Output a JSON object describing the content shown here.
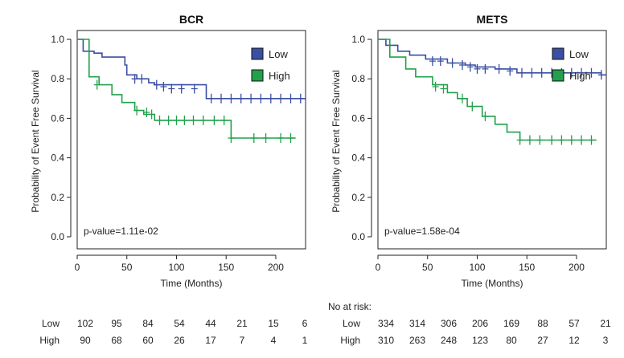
{
  "risk_label": "No at risk:",
  "colors": {
    "low": "#3a4ea3",
    "high": "#22a04b",
    "axis": "#222222"
  },
  "chart_data": [
    {
      "type": "line",
      "title": "BCR",
      "xlabel": "Time (Months)",
      "ylabel": "Probability of Event Free Survival",
      "xlim": [
        0,
        230
      ],
      "ylim": [
        0,
        1
      ],
      "xticks": [
        "0",
        "50",
        "100",
        "150",
        "200"
      ],
      "yticks": [
        "0.0",
        "0.2",
        "0.4",
        "0.6",
        "0.8",
        "1.0"
      ],
      "grid": false,
      "legend": "top-right",
      "pvalue": "p-value=1.11e-02",
      "series": [
        {
          "name": "Low",
          "color": "#3a4ea3",
          "steps": [
            [
              0,
              1.0
            ],
            [
              6,
              1.0
            ],
            [
              6,
              0.94
            ],
            [
              17,
              0.94
            ],
            [
              17,
              0.93
            ],
            [
              25,
              0.93
            ],
            [
              25,
              0.91
            ],
            [
              48,
              0.91
            ],
            [
              48,
              0.87
            ],
            [
              50,
              0.87
            ],
            [
              50,
              0.82
            ],
            [
              60,
              0.82
            ],
            [
              60,
              0.8
            ],
            [
              72,
              0.8
            ],
            [
              72,
              0.78
            ],
            [
              78,
              0.78
            ],
            [
              78,
              0.77
            ],
            [
              130,
              0.77
            ],
            [
              130,
              0.7
            ],
            [
              230,
              0.7
            ]
          ],
          "censored": [
            [
              58,
              0.8
            ],
            [
              65,
              0.8
            ],
            [
              80,
              0.77
            ],
            [
              87,
              0.76
            ],
            [
              95,
              0.75
            ],
            [
              105,
              0.75
            ],
            [
              118,
              0.75
            ],
            [
              135,
              0.7
            ],
            [
              145,
              0.7
            ],
            [
              155,
              0.7
            ],
            [
              165,
              0.7
            ],
            [
              175,
              0.7
            ],
            [
              185,
              0.7
            ],
            [
              195,
              0.7
            ],
            [
              205,
              0.7
            ],
            [
              215,
              0.7
            ],
            [
              225,
              0.7
            ]
          ]
        },
        {
          "name": "High",
          "color": "#22a04b",
          "steps": [
            [
              0,
              1.0
            ],
            [
              12,
              1.0
            ],
            [
              12,
              0.81
            ],
            [
              22,
              0.81
            ],
            [
              22,
              0.77
            ],
            [
              35,
              0.77
            ],
            [
              35,
              0.72
            ],
            [
              45,
              0.72
            ],
            [
              45,
              0.68
            ],
            [
              58,
              0.68
            ],
            [
              58,
              0.64
            ],
            [
              67,
              0.64
            ],
            [
              67,
              0.62
            ],
            [
              78,
              0.62
            ],
            [
              78,
              0.59
            ],
            [
              155,
              0.59
            ],
            [
              155,
              0.5
            ],
            [
              220,
              0.5
            ]
          ],
          "censored": [
            [
              20,
              0.77
            ],
            [
              60,
              0.64
            ],
            [
              70,
              0.63
            ],
            [
              75,
              0.62
            ],
            [
              83,
              0.59
            ],
            [
              92,
              0.59
            ],
            [
              100,
              0.59
            ],
            [
              108,
              0.59
            ],
            [
              117,
              0.59
            ],
            [
              127,
              0.59
            ],
            [
              138,
              0.59
            ],
            [
              148,
              0.59
            ],
            [
              155,
              0.5
            ],
            [
              178,
              0.5
            ],
            [
              190,
              0.5
            ],
            [
              205,
              0.5
            ],
            [
              215,
              0.5
            ]
          ]
        }
      ],
      "at_risk": {
        "x": [
          0,
          25,
          50,
          75,
          100,
          125,
          150,
          175
        ],
        "rows": [
          {
            "label": "Low",
            "values": [
              "102",
              "95",
              "84",
              "54",
              "44",
              "21",
              "15",
              "6"
            ]
          },
          {
            "label": "High",
            "values": [
              "90",
              "68",
              "60",
              "26",
              "17",
              "7",
              "4",
              "1"
            ]
          }
        ]
      }
    },
    {
      "type": "line",
      "title": "METS",
      "xlabel": "Time (Months)",
      "ylabel": "Probability of Event Free Survival",
      "xlim": [
        0,
        230
      ],
      "ylim": [
        0,
        1
      ],
      "xticks": [
        "0",
        "50",
        "100",
        "150",
        "200"
      ],
      "yticks": [
        "0.0",
        "0.2",
        "0.4",
        "0.6",
        "0.8",
        "1.0"
      ],
      "grid": false,
      "legend": "top-right",
      "pvalue": "p-value=1.58e-04",
      "series": [
        {
          "name": "Low",
          "color": "#3a4ea3",
          "steps": [
            [
              0,
              1.0
            ],
            [
              8,
              1.0
            ],
            [
              8,
              0.97
            ],
            [
              20,
              0.97
            ],
            [
              20,
              0.94
            ],
            [
              32,
              0.94
            ],
            [
              32,
              0.92
            ],
            [
              48,
              0.92
            ],
            [
              48,
              0.9
            ],
            [
              70,
              0.9
            ],
            [
              70,
              0.88
            ],
            [
              88,
              0.88
            ],
            [
              88,
              0.87
            ],
            [
              98,
              0.87
            ],
            [
              98,
              0.86
            ],
            [
              118,
              0.86
            ],
            [
              118,
              0.85
            ],
            [
              140,
              0.85
            ],
            [
              140,
              0.83
            ],
            [
              225,
              0.83
            ],
            [
              225,
              0.82
            ],
            [
              230,
              0.82
            ]
          ],
          "censored": [
            [
              55,
              0.89
            ],
            [
              63,
              0.89
            ],
            [
              75,
              0.88
            ],
            [
              85,
              0.87
            ],
            [
              93,
              0.86
            ],
            [
              100,
              0.85
            ],
            [
              108,
              0.85
            ],
            [
              122,
              0.85
            ],
            [
              133,
              0.84
            ],
            [
              145,
              0.83
            ],
            [
              155,
              0.83
            ],
            [
              165,
              0.83
            ],
            [
              175,
              0.83
            ],
            [
              185,
              0.83
            ],
            [
              195,
              0.83
            ],
            [
              205,
              0.83
            ],
            [
              215,
              0.83
            ],
            [
              225,
              0.82
            ]
          ]
        },
        {
          "name": "High",
          "color": "#22a04b",
          "steps": [
            [
              0,
              1.0
            ],
            [
              12,
              1.0
            ],
            [
              12,
              0.91
            ],
            [
              28,
              0.91
            ],
            [
              28,
              0.85
            ],
            [
              38,
              0.85
            ],
            [
              38,
              0.81
            ],
            [
              55,
              0.81
            ],
            [
              55,
              0.77
            ],
            [
              70,
              0.77
            ],
            [
              70,
              0.73
            ],
            [
              80,
              0.73
            ],
            [
              80,
              0.7
            ],
            [
              90,
              0.7
            ],
            [
              90,
              0.66
            ],
            [
              105,
              0.66
            ],
            [
              105,
              0.61
            ],
            [
              118,
              0.61
            ],
            [
              118,
              0.57
            ],
            [
              130,
              0.57
            ],
            [
              130,
              0.53
            ],
            [
              143,
              0.53
            ],
            [
              143,
              0.49
            ],
            [
              220,
              0.49
            ]
          ],
          "censored": [
            [
              58,
              0.76
            ],
            [
              66,
              0.75
            ],
            [
              85,
              0.7
            ],
            [
              95,
              0.66
            ],
            [
              108,
              0.61
            ],
            [
              143,
              0.49
            ],
            [
              153,
              0.49
            ],
            [
              163,
              0.49
            ],
            [
              175,
              0.49
            ],
            [
              185,
              0.49
            ],
            [
              195,
              0.49
            ],
            [
              205,
              0.49
            ],
            [
              215,
              0.49
            ]
          ]
        }
      ],
      "at_risk": {
        "x": [
          0,
          25,
          50,
          75,
          100,
          125,
          150,
          175
        ],
        "rows": [
          {
            "label": "Low",
            "values": [
              "334",
              "314",
              "306",
              "206",
              "169",
              "88",
              "57",
              "21"
            ]
          },
          {
            "label": "High",
            "values": [
              "310",
              "263",
              "248",
              "123",
              "80",
              "27",
              "12",
              "3"
            ]
          }
        ]
      }
    }
  ]
}
